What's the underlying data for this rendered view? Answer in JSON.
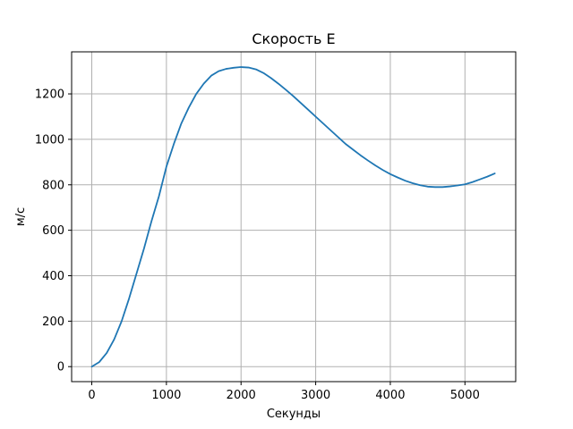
{
  "chart_data": {
    "type": "line",
    "title": "Скорость Е",
    "xlabel": "Секунды",
    "ylabel": "м/с",
    "xlim": [
      -270,
      5680
    ],
    "ylim": [
      -66,
      1385
    ],
    "xticks": [
      0,
      1000,
      2000,
      3000,
      4000,
      5000
    ],
    "yticks": [
      0,
      200,
      400,
      600,
      800,
      1000,
      1200
    ],
    "grid": true,
    "colors": {
      "line": "#1f77b4",
      "grid": "#b0b0b0",
      "axes": "#000000"
    },
    "series": [
      {
        "x": [
          0,
          100,
          200,
          300,
          400,
          500,
          600,
          700,
          800,
          900,
          1000,
          1100,
          1200,
          1300,
          1400,
          1500,
          1600,
          1700,
          1800,
          1900,
          2000,
          2100,
          2200,
          2300,
          2400,
          2500,
          2600,
          2700,
          2800,
          2900,
          3000,
          3100,
          3200,
          3300,
          3400,
          3500,
          3600,
          3700,
          3800,
          3900,
          4000,
          4100,
          4200,
          4300,
          4400,
          4500,
          4600,
          4700,
          4800,
          4900,
          5000,
          5100,
          5200,
          5300,
          5400
        ],
        "values": [
          0,
          20,
          60,
          120,
          200,
          300,
          410,
          520,
          640,
          750,
          880,
          980,
          1070,
          1140,
          1200,
          1245,
          1280,
          1300,
          1310,
          1315,
          1318,
          1316,
          1308,
          1292,
          1270,
          1245,
          1218,
          1190,
          1160,
          1130,
          1100,
          1070,
          1040,
          1010,
          980,
          955,
          930,
          907,
          885,
          865,
          847,
          832,
          818,
          807,
          798,
          792,
          790,
          790,
          793,
          797,
          802,
          812,
          824,
          836,
          850
        ]
      }
    ]
  }
}
